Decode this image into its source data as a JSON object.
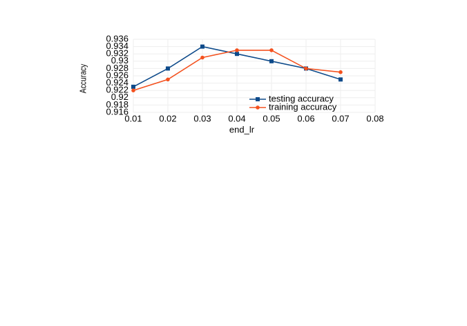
{
  "chart_data": {
    "type": "line",
    "xlabel": "end_lr",
    "ylabel": "Accuracy",
    "x": [
      0.01,
      0.02,
      0.03,
      0.04,
      0.05,
      0.06,
      0.07
    ],
    "series": [
      {
        "name": "testing accuracy",
        "color": "#0d4a8a",
        "marker": "square",
        "values": [
          0.923,
          0.928,
          0.934,
          0.932,
          0.93,
          0.928,
          0.925
        ]
      },
      {
        "name": "training accuracy",
        "color": "#f4511e",
        "marker": "circle",
        "values": [
          0.922,
          0.925,
          0.931,
          0.933,
          0.933,
          0.928,
          0.927
        ]
      }
    ],
    "xlim": [
      0.01,
      0.08
    ],
    "xticks": [
      0.01,
      0.02,
      0.03,
      0.04,
      0.05,
      0.06,
      0.07,
      0.08
    ],
    "ylim": [
      0.916,
      0.936
    ],
    "yticks": [
      0.916,
      0.918,
      0.92,
      0.922,
      0.924,
      0.926,
      0.928,
      0.93,
      0.932,
      0.934,
      0.936
    ],
    "grid": true,
    "legend": "lower-right"
  }
}
